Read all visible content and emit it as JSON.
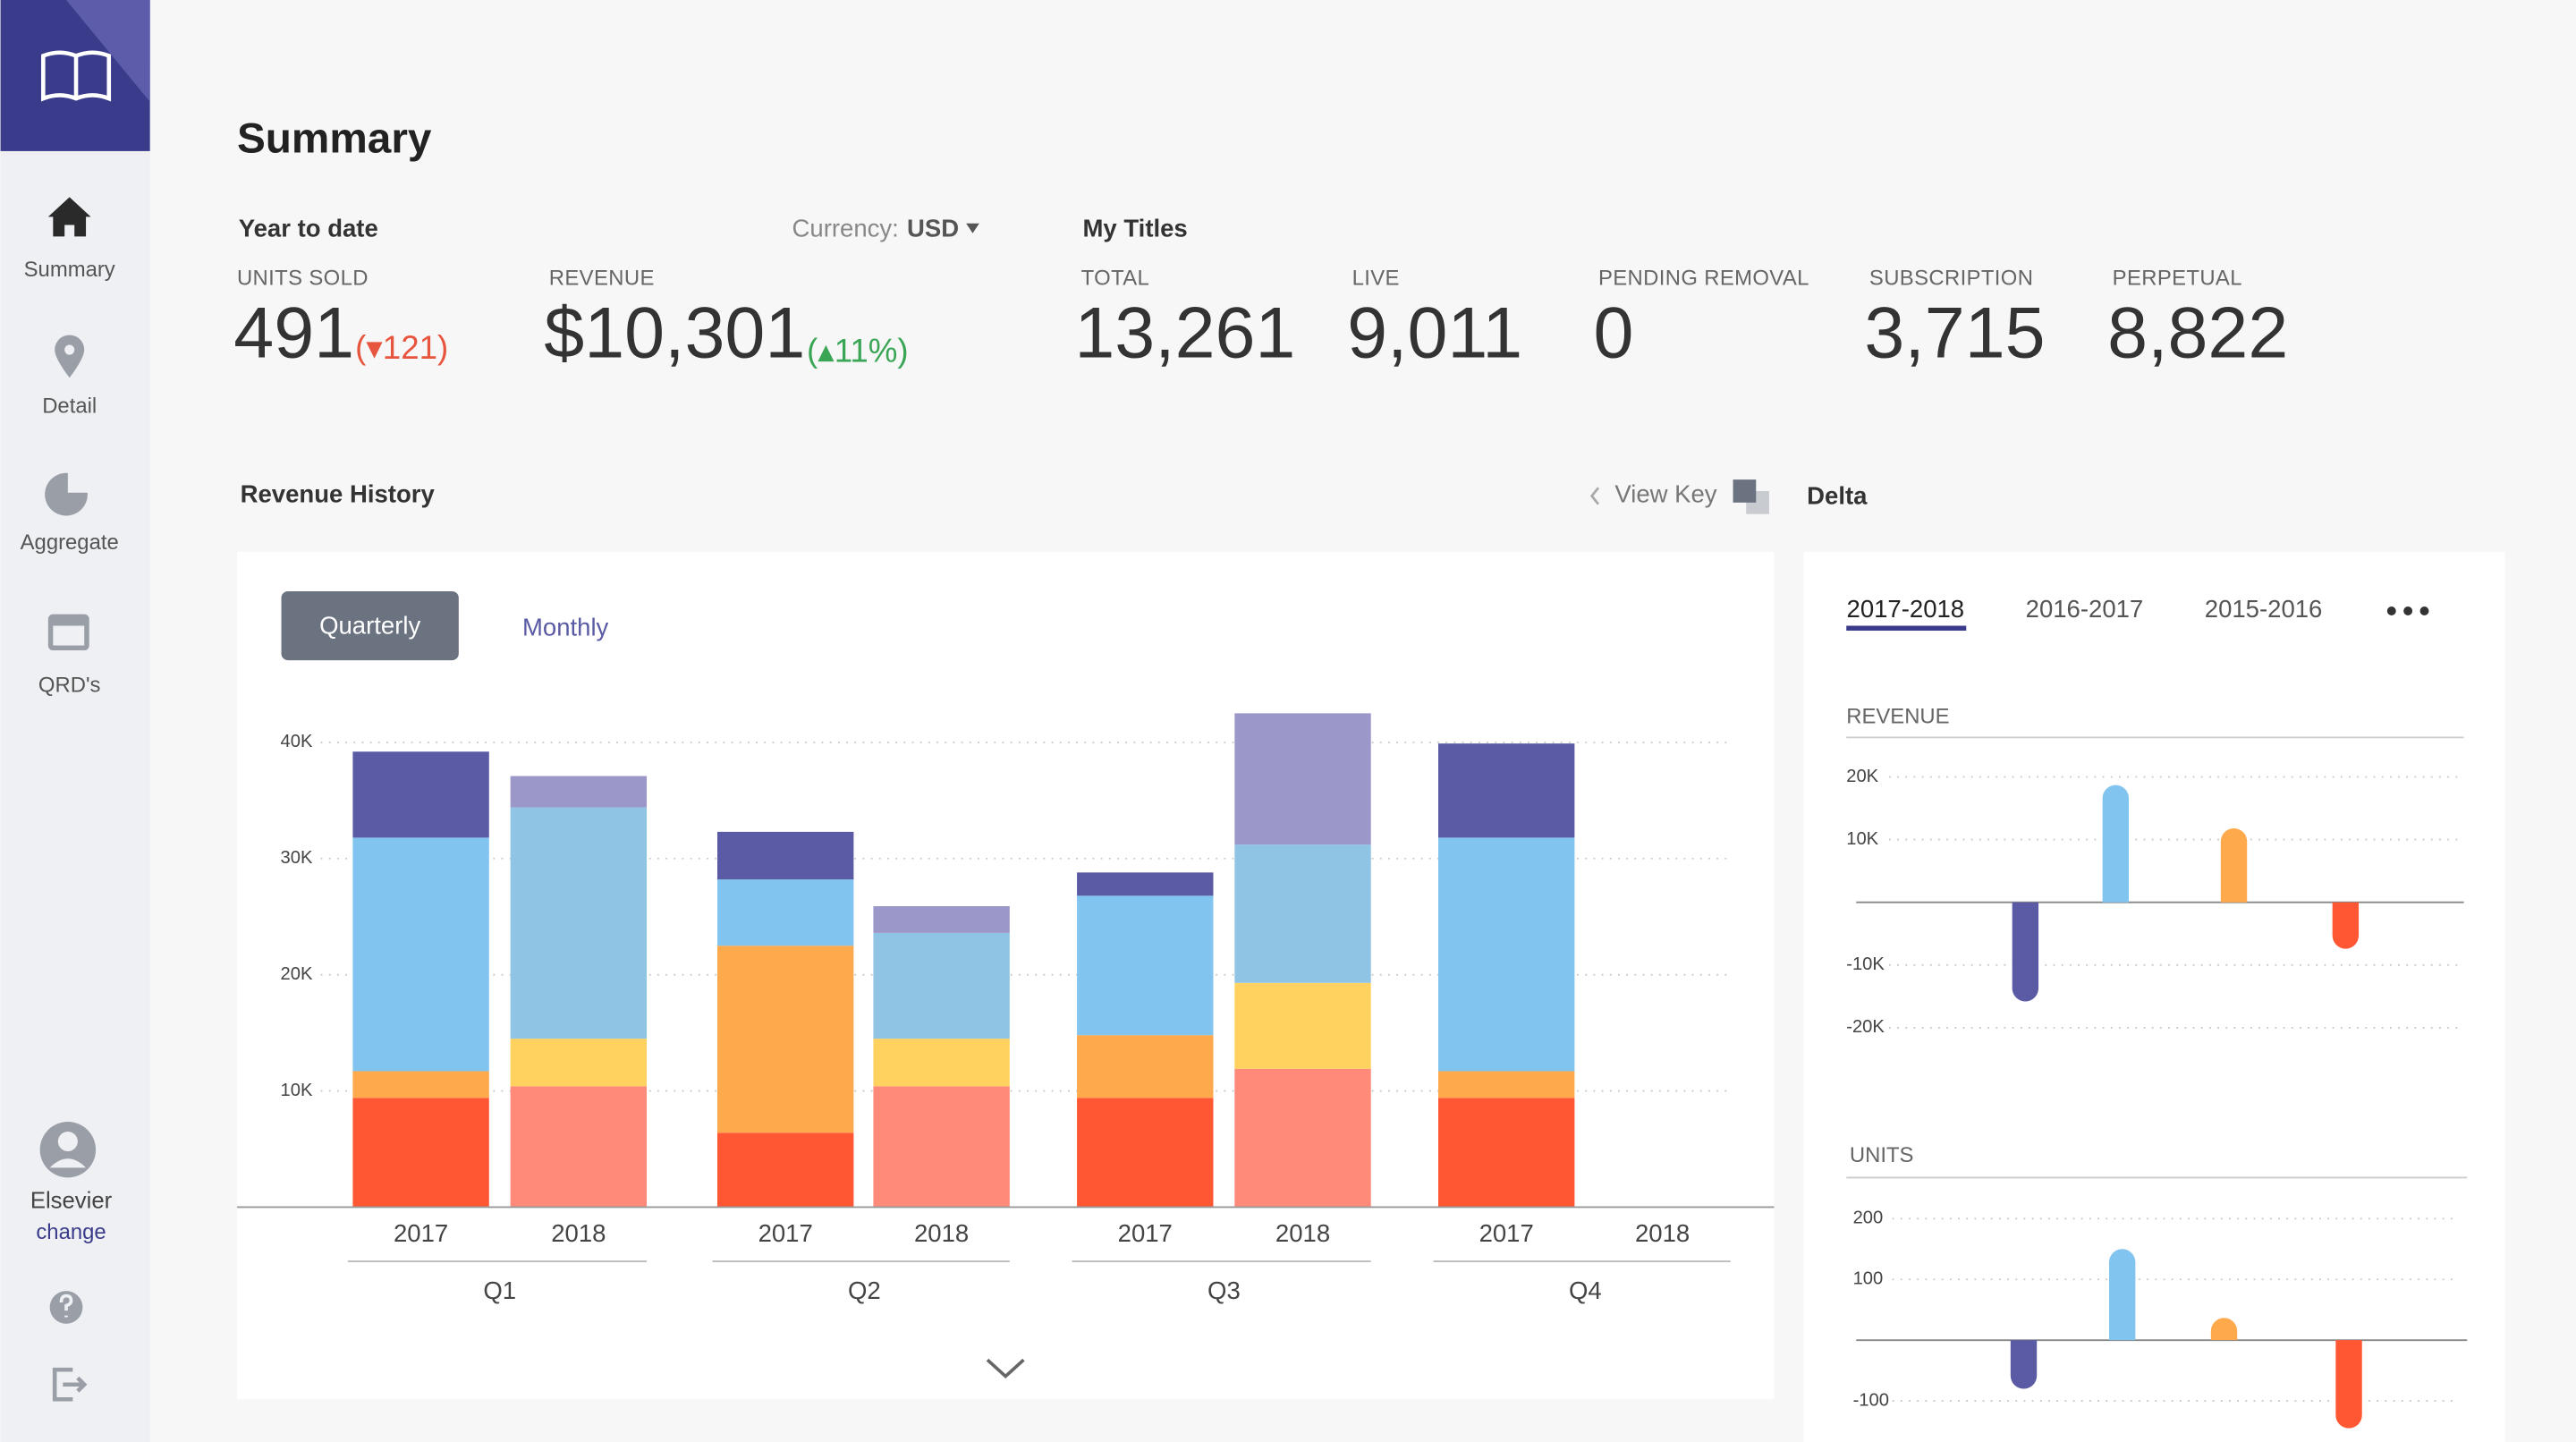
{
  "sidebar": {
    "items": [
      "Summary",
      "Detail",
      "Aggregate",
      "QRD's"
    ],
    "user": "Elsevier",
    "change": "change"
  },
  "header": {
    "title": "Summary"
  },
  "year_to_date": {
    "title": "Year to date",
    "currency_label": "Currency:",
    "currency": "USD",
    "stats": [
      {
        "label": "UNITS SOLD",
        "value": "491",
        "delta": "(▾121)"
      },
      {
        "label": "REVENUE",
        "value": "$10,301",
        "delta": "(▴11%)"
      }
    ]
  },
  "my_titles": {
    "title": "My Titles",
    "stats": [
      {
        "label": "TOTAL",
        "value": "13,261"
      },
      {
        "label": "LIVE",
        "value": "9,011"
      },
      {
        "label": "PENDING REMOVAL",
        "value": "0"
      },
      {
        "label": "SUBSCRIPTION",
        "value": "3,715"
      },
      {
        "label": "PERPETUAL",
        "value": "8,822"
      }
    ]
  },
  "revenue_history": {
    "title": "Revenue History",
    "view_key": "View Key",
    "tabs": [
      "Quarterly",
      "Monthly"
    ]
  },
  "delta": {
    "title": "Delta",
    "tabs": [
      "2017-2018",
      "2016-2017",
      "2015-2016"
    ]
  },
  "chart_data": [
    {
      "type": "bar",
      "stacked": true,
      "grid": true,
      "categories": [
        "2017",
        "2018",
        "2017",
        "2018",
        "2017",
        "2018",
        "2017",
        "2018"
      ],
      "groups": [
        "Q1",
        "Q2",
        "Q3",
        "Q4"
      ],
      "ylim": [
        0,
        44000
      ],
      "yticks": [
        {
          "value": 10000,
          "label": "10K"
        },
        {
          "value": 20000,
          "label": "20K"
        },
        {
          "value": 30000,
          "label": "30K"
        },
        {
          "value": 40000,
          "label": "40K"
        }
      ],
      "series": [
        {
          "color": "#ff5733",
          "values": [
            9400,
            null,
            6400,
            null,
            9400,
            null,
            9400,
            null
          ]
        },
        {
          "color": "#ffa94d",
          "values": [
            2300,
            null,
            16100,
            null,
            5400,
            null,
            2300,
            null
          ]
        },
        {
          "color": "#82c4f0",
          "values": [
            20100,
            null,
            5700,
            null,
            12000,
            null,
            20100,
            null
          ]
        },
        {
          "color": "#5a5aa5",
          "values": [
            7400,
            null,
            4100,
            null,
            2000,
            null,
            8100,
            null
          ]
        },
        {
          "color": "#ff8a7a",
          "values": [
            null,
            10400,
            null,
            10400,
            null,
            11900,
            null,
            null
          ]
        },
        {
          "color": "#ffd260",
          "values": [
            null,
            4100,
            null,
            4100,
            null,
            7400,
            null,
            null
          ]
        },
        {
          "color": "#90c4e4",
          "values": [
            null,
            19900,
            null,
            9100,
            null,
            11900,
            null,
            null
          ]
        },
        {
          "color": "#9b97c9",
          "values": [
            null,
            2700,
            null,
            2300,
            null,
            11300,
            null,
            null
          ]
        }
      ]
    },
    {
      "type": "bar",
      "title": "REVENUE",
      "grid": true,
      "ylim": [
        -22000,
        22000
      ],
      "yticks": [
        {
          "value": 20000,
          "label": "20K"
        },
        {
          "value": 10000,
          "label": "10K"
        },
        {
          "value": -10000,
          "label": "-10K"
        },
        {
          "value": -20000,
          "label": "-20K"
        }
      ],
      "values": [
        -15800,
        18700,
        11800,
        -7400
      ],
      "colors": [
        "#5a5aa5",
        "#82c4f0",
        "#ffa94d",
        "#ff5733"
      ]
    },
    {
      "type": "bar",
      "title": "UNITS",
      "grid": true,
      "ylim": [
        -160,
        220
      ],
      "yticks": [
        200,
        100,
        -100
      ],
      "values": [
        -80,
        150,
        30,
        -145
      ],
      "colors": [
        "#5a5aa5",
        "#82c4f0",
        "#ffa94d",
        "#ff5733"
      ]
    }
  ]
}
